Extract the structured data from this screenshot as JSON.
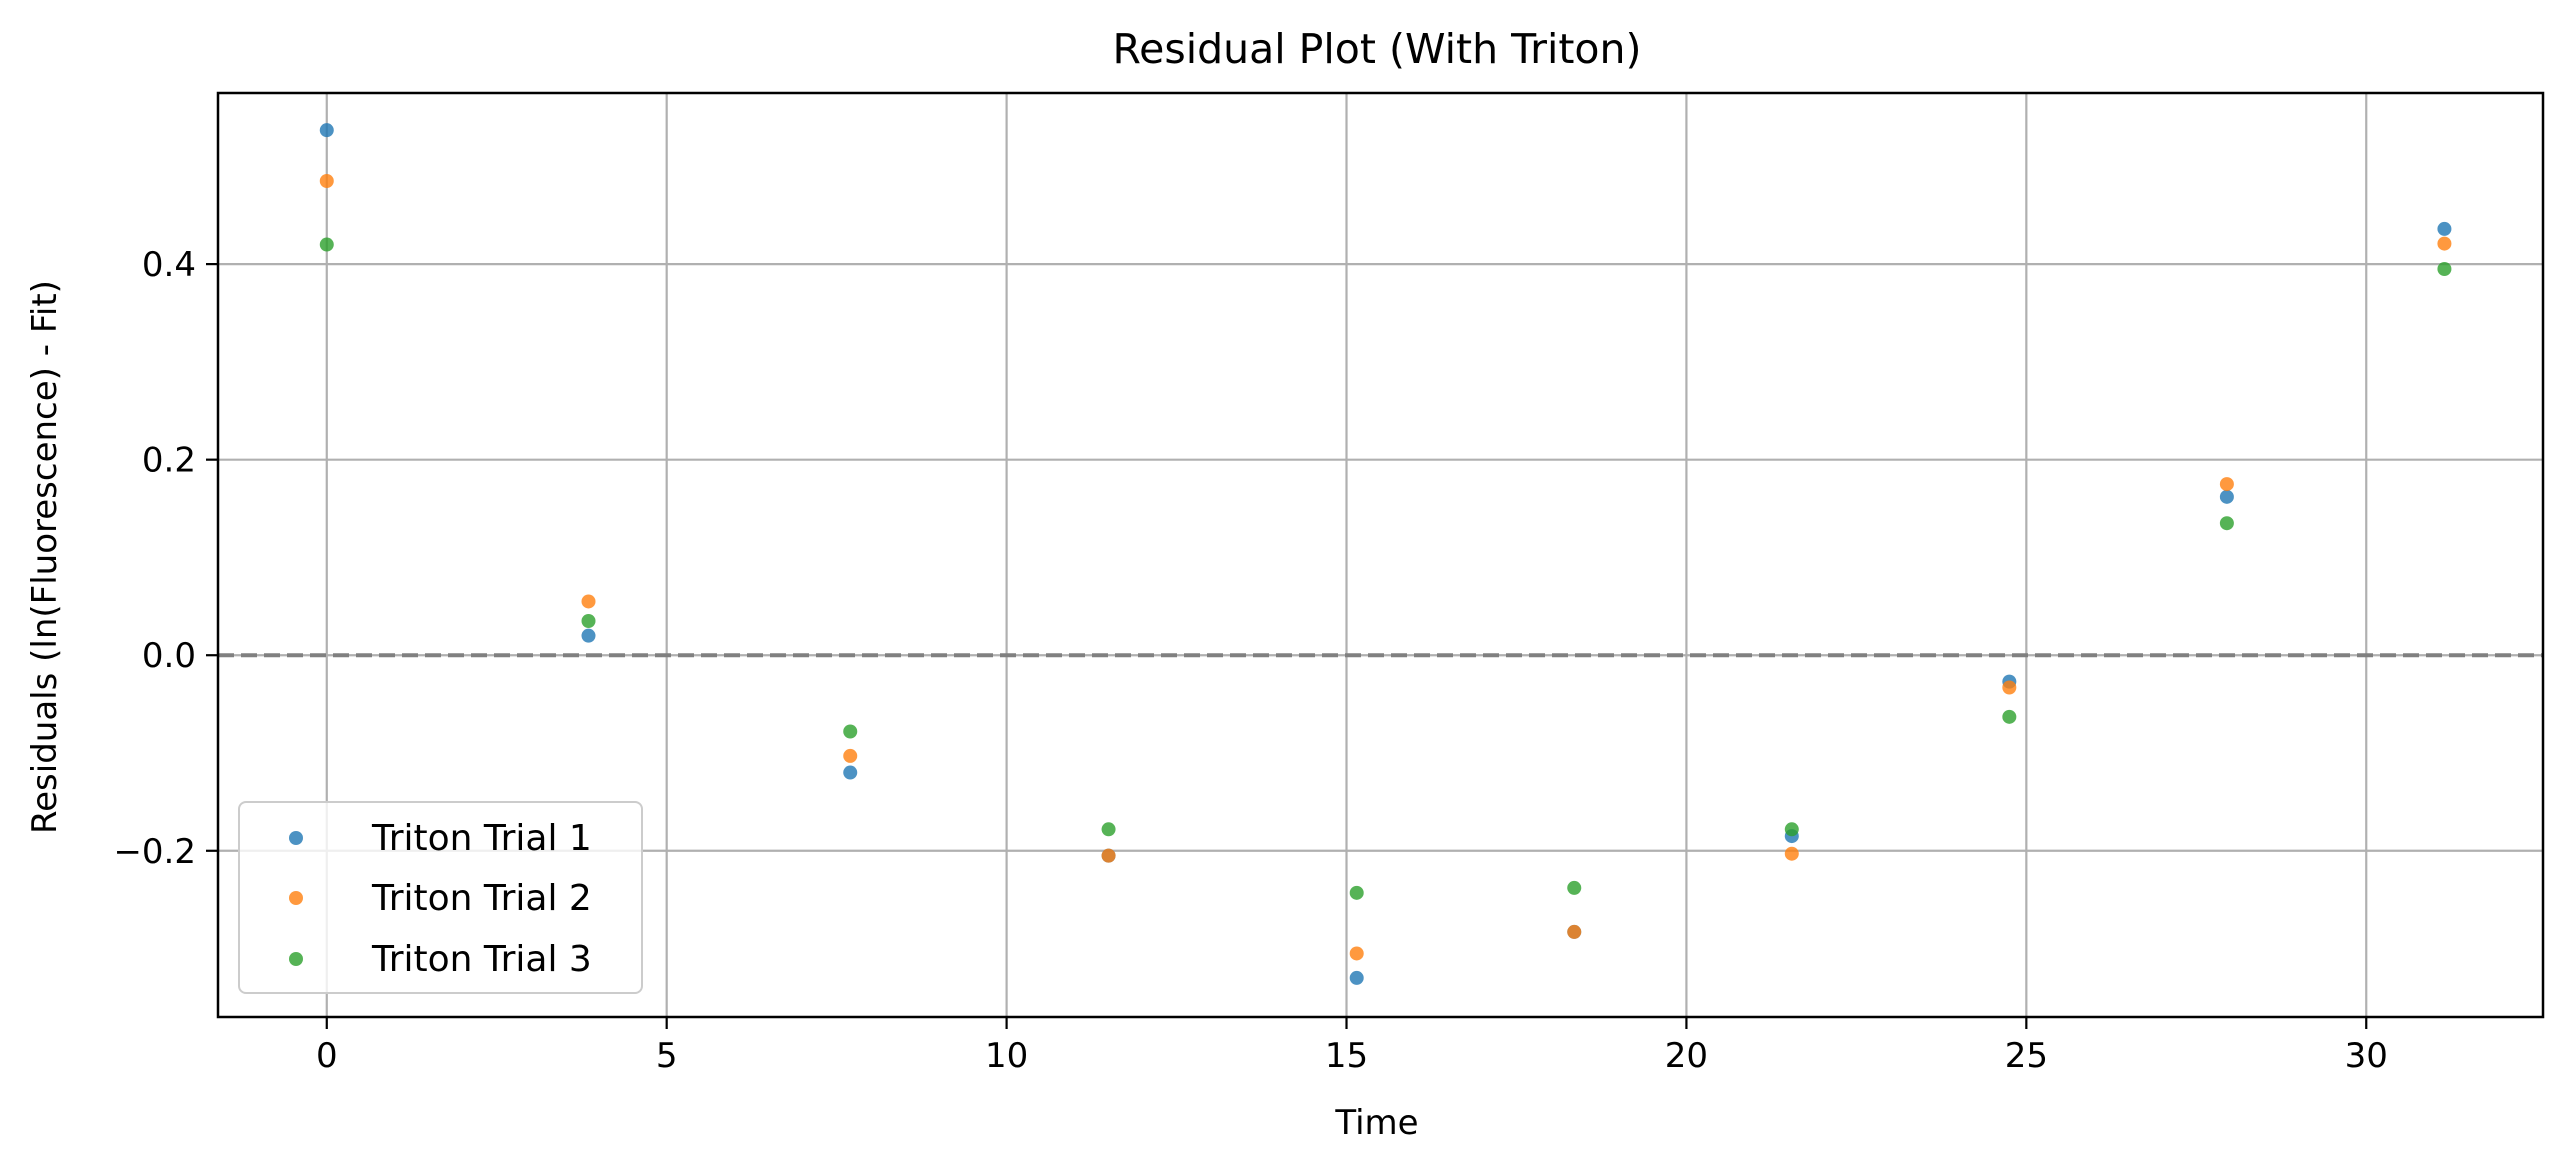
{
  "colors": {
    "series1": "#1f77b4",
    "series2": "#ff7f0e",
    "series3": "#2ca02c",
    "grid": "#b0b0b0",
    "zero_line": "#808080"
  },
  "chart_data": {
    "type": "scatter",
    "title": "Residual Plot (With Triton)",
    "xlabel": "Time",
    "ylabel": "Residuals (ln(Fluorescence) - Fit)",
    "xlim": [
      -1.6,
      32.6
    ],
    "ylim": [
      -0.37,
      0.575
    ],
    "xticks": [
      0,
      5,
      10,
      15,
      20,
      25,
      30
    ],
    "xtick_labels": [
      "0",
      "5",
      "10",
      "15",
      "20",
      "25",
      "30"
    ],
    "yticks": [
      -0.2,
      0.0,
      0.2,
      0.4
    ],
    "ytick_labels": [
      "−0.2",
      "0.0",
      "0.2",
      "0.4"
    ],
    "grid": true,
    "reference_line": {
      "y": 0.0,
      "style": "dashed"
    },
    "legend_position": "lower-left",
    "series": [
      {
        "name": "Triton Trial 1",
        "x": [
          0.0,
          3.85,
          7.7,
          11.5,
          15.15,
          18.35,
          21.55,
          24.75,
          27.95,
          31.15
        ],
        "y": [
          0.537,
          0.02,
          -0.12,
          -0.205,
          -0.33,
          -0.283,
          -0.185,
          -0.027,
          0.162,
          0.436
        ]
      },
      {
        "name": "Triton Trial 2",
        "x": [
          0.0,
          3.85,
          7.7,
          11.5,
          15.15,
          18.35,
          21.55,
          24.75,
          27.95,
          31.15
        ],
        "y": [
          0.485,
          0.055,
          -0.103,
          -0.205,
          -0.305,
          -0.283,
          -0.203,
          -0.033,
          0.175,
          0.421
        ]
      },
      {
        "name": "Triton Trial 3",
        "x": [
          0.0,
          3.85,
          7.7,
          11.5,
          15.15,
          18.35,
          21.55,
          24.75,
          27.95,
          31.15
        ],
        "y": [
          0.42,
          0.035,
          -0.078,
          -0.178,
          -0.243,
          -0.238,
          -0.178,
          -0.063,
          0.135,
          0.395
        ]
      }
    ]
  }
}
